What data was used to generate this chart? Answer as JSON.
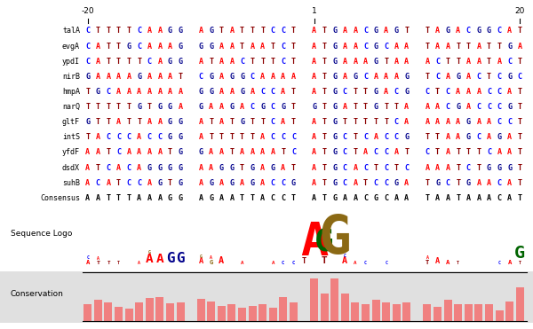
{
  "seqs_raw": [
    [
      "talA",
      "CTTTTCAAGG AGTATTTCCT ATGAACGAGT TAGACGGCAT"
    ],
    [
      "evgA",
      "CATTGCAAAG GGAATAATCT ATGAACGCAA TAATTATTGA"
    ],
    [
      "ypdI",
      "CATTTTCAGG ATAACTTTCT ATGAAAGTAA ACTTAATACT"
    ],
    [
      "nirB",
      "GAAAAGAAAT CGAGGCAAAA ATGAGCAAAG TCAGACTCGC"
    ],
    [
      "hmpA",
      "TGCAAAAAAA GGAAGACCAT ATGCTTGACG CTCAAACCAT"
    ],
    [
      "narQ",
      "TTTTTGTGGA GAAGACGCGT GTGATTGTTA AACGACCCGT"
    ],
    [
      "gltF",
      "GTTATTAAGG ATATGTTCAT ATGTTTTTCA AAAAGAACCT"
    ],
    [
      "intS",
      "TACCCACCGG ATTTTTACCC ATGCTCACCG TTAAGCAGAT"
    ],
    [
      "yfdF",
      "AATCAAAATG GAATAAAATC ATGCTACCAT CTATTTCAAT"
    ],
    [
      "dsdX",
      "ATCACAGGGG AAGGTGAGAT ATGCACTCTC AAATCTGGGT"
    ],
    [
      "suhB",
      "ACATCCAGTG AGAGAGACCG ATGCATCCGA TGCTGAACAT"
    ]
  ],
  "consensus_raw": "AATTTAAAGG AGAATTACCT ATGAACGCAA TAATAAACAT",
  "nt_colors": {
    "A": "#ff0000",
    "T": "#8b0000",
    "G": "#00008b",
    "C": "#0000ff"
  },
  "cons_color": "#000000",
  "axis_ticks": [
    [
      "-20",
      0
    ],
    [
      "1",
      22
    ],
    [
      "20",
      42
    ]
  ],
  "logo_letters": [
    [
      0,
      "A",
      "#ff0000",
      0.1
    ],
    [
      0,
      "C",
      "#0000ff",
      0.04
    ],
    [
      1,
      "T",
      "#8b0000",
      0.09
    ],
    [
      1,
      "A",
      "#ff0000",
      0.04
    ],
    [
      2,
      "T",
      "#8b0000",
      0.08
    ],
    [
      3,
      "T",
      "#8b0000",
      0.05
    ],
    [
      5,
      "A",
      "#ff0000",
      0.06
    ],
    [
      6,
      "A",
      "#ff0000",
      0.2
    ],
    [
      6,
      "G",
      "#8b6914",
      0.05
    ],
    [
      7,
      "A",
      "#ff0000",
      0.2
    ],
    [
      8,
      "G",
      "#00008b",
      0.22
    ],
    [
      9,
      "G",
      "#00008b",
      0.22
    ],
    [
      11,
      "A",
      "#ff0000",
      0.12
    ],
    [
      11,
      "G",
      "#8b6914",
      0.05
    ],
    [
      12,
      "G",
      "#8b6914",
      0.1
    ],
    [
      12,
      "A",
      "#ff0000",
      0.06
    ],
    [
      13,
      "A",
      "#ff0000",
      0.14
    ],
    [
      15,
      "A",
      "#ff0000",
      0.08
    ],
    [
      18,
      "A",
      "#ff0000",
      0.08
    ],
    [
      19,
      "C",
      "#0000ff",
      0.08
    ],
    [
      20,
      "C",
      "#0000ff",
      0.08
    ],
    [
      21,
      "T",
      "#8b0000",
      0.12
    ],
    [
      22,
      "A",
      "#ff0000",
      0.72
    ],
    [
      23,
      "T",
      "#8b0000",
      0.15
    ],
    [
      23,
      "G",
      "#006400",
      0.5
    ],
    [
      24,
      "G",
      "#8b6914",
      0.85
    ],
    [
      25,
      "A",
      "#ff0000",
      0.14
    ],
    [
      25,
      "C",
      "#0000ff",
      0.06
    ],
    [
      26,
      "A",
      "#ff0000",
      0.08
    ],
    [
      27,
      "C",
      "#0000ff",
      0.07
    ],
    [
      29,
      "C",
      "#0000ff",
      0.06
    ],
    [
      33,
      "T",
      "#8b0000",
      0.1
    ],
    [
      33,
      "A",
      "#ff0000",
      0.05
    ],
    [
      34,
      "A",
      "#ff0000",
      0.12
    ],
    [
      35,
      "A",
      "#ff0000",
      0.1
    ],
    [
      36,
      "T",
      "#8b0000",
      0.07
    ],
    [
      40,
      "C",
      "#0000ff",
      0.06
    ],
    [
      41,
      "A",
      "#ff0000",
      0.1
    ],
    [
      42,
      "T",
      "#8b0000",
      0.07
    ],
    [
      42,
      "G",
      "#006400",
      0.28
    ]
  ],
  "conservation_values": [
    0.38,
    0.48,
    0.42,
    0.33,
    0.28,
    0.42,
    0.52,
    0.55,
    0.4,
    0.42,
    0.5,
    0.45,
    0.35,
    0.38,
    0.3,
    0.35,
    0.38,
    0.3,
    0.55,
    0.42,
    0.95,
    0.62,
    0.95,
    0.62,
    0.42,
    0.38,
    0.48,
    0.42,
    0.38,
    0.42,
    0.38,
    0.33,
    0.48,
    0.38,
    0.38,
    0.38,
    0.38,
    0.25,
    0.45,
    0.75
  ],
  "conservation_bar_color": "#f08080",
  "conservation_bg": "#e0e0e0"
}
